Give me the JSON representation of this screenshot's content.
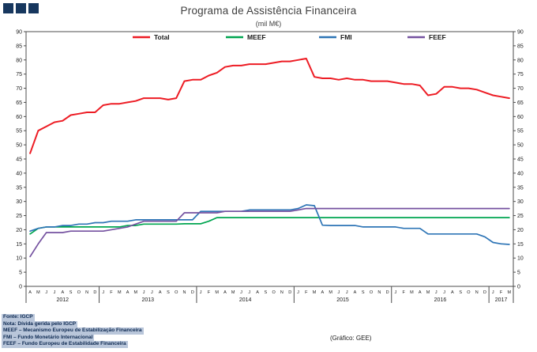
{
  "page": {
    "title": "Programa de Assistência Financeira",
    "subtitle": "(mil M€)"
  },
  "logo": {
    "squares": 3,
    "color": "#17375e"
  },
  "footnotes": [
    "Fonte: IGCP",
    "Nota: Dívida gerida pelo IGCP",
    "MEEF – Mecanismo Europeu de Estabilização Financeira",
    "FMI – Fundo Monetário Internacional",
    "FEEF – Fundo Europeu de Estabilidade Financeira"
  ],
  "credit": "(Gráfico: GEE)",
  "chart_data": {
    "type": "line",
    "title": "Programa de Assistência Financeira",
    "subtitle": "(mil M€)",
    "ylabel": "",
    "xlabel": "",
    "ylim": [
      0,
      90
    ],
    "ytick_step": 5,
    "grid": false,
    "legend_position": "top-center-inside",
    "dual_y_axis": true,
    "colors": {
      "axis": "#4d4d4d",
      "text": "#1a1a1a"
    },
    "x_months": [
      "A",
      "M",
      "J",
      "J",
      "A",
      "S",
      "O",
      "N",
      "D",
      "J",
      "F",
      "M",
      "A",
      "M",
      "J",
      "J",
      "A",
      "S",
      "O",
      "N",
      "D",
      "J",
      "F",
      "M",
      "A",
      "M",
      "J",
      "J",
      "A",
      "S",
      "O",
      "N",
      "D",
      "J",
      "F",
      "M",
      "A",
      "M",
      "J",
      "J",
      "A",
      "S",
      "O",
      "N",
      "D",
      "J",
      "F",
      "M",
      "A",
      "M",
      "J",
      "J",
      "A",
      "S",
      "O",
      "N",
      "D",
      "J",
      "F",
      "M"
    ],
    "year_groups": [
      {
        "label": "2012",
        "count": 9
      },
      {
        "label": "2013",
        "count": 12
      },
      {
        "label": "2014",
        "count": 12
      },
      {
        "label": "2015",
        "count": 12
      },
      {
        "label": "2016",
        "count": 12
      },
      {
        "label": "2017",
        "count": 3
      }
    ],
    "series": [
      {
        "name": "Total",
        "color": "#ed1c24",
        "values": [
          47,
          55,
          56.5,
          58,
          58.5,
          60.5,
          61,
          61.5,
          61.5,
          64,
          64.5,
          64.5,
          65,
          65.5,
          66.5,
          66.5,
          66.5,
          66,
          66.5,
          72.5,
          73,
          73,
          74.5,
          75.5,
          77.5,
          78,
          78,
          78.5,
          78.5,
          78.5,
          79,
          79.5,
          79.5,
          80,
          80.5,
          74,
          73.5,
          73.5,
          73,
          73.5,
          73,
          73,
          72.5,
          72.5,
          72.5,
          72,
          71.5,
          71.5,
          71,
          67.5,
          68,
          70.5,
          70.5,
          70,
          70,
          69.5,
          68.5,
          67.5,
          67,
          66.5
        ]
      },
      {
        "name": "MEEF",
        "color": "#00a550",
        "values": [
          18.5,
          20.5,
          21,
          21,
          21,
          21,
          21,
          21,
          21,
          21,
          21,
          21,
          21.5,
          21.5,
          22,
          22,
          22,
          22,
          22,
          22.1,
          22.1,
          22.1,
          23,
          24.3,
          24.3,
          24.3,
          24.3,
          24.3,
          24.3,
          24.3,
          24.3,
          24.3,
          24.3,
          24.3,
          24.3,
          24.3,
          24.3,
          24.3,
          24.3,
          24.3,
          24.3,
          24.3,
          24.3,
          24.3,
          24.3,
          24.3,
          24.3,
          24.3,
          24.3,
          24.3,
          24.3,
          24.3,
          24.3,
          24.3,
          24.3,
          24.3,
          24.3,
          24.3,
          24.3,
          24.3
        ]
      },
      {
        "name": "FMI",
        "color": "#2e75b6",
        "values": [
          19.5,
          20.5,
          21,
          21,
          21.5,
          21.5,
          22,
          22,
          22.5,
          22.5,
          23,
          23,
          23,
          23.5,
          23.5,
          23.5,
          23.5,
          23.5,
          23.5,
          23.5,
          23.5,
          26.5,
          26.5,
          26.5,
          26.5,
          26.5,
          26.5,
          27,
          27,
          27,
          27,
          27,
          27,
          27.5,
          28.8,
          28.5,
          21.6,
          21.5,
          21.5,
          21.5,
          21.5,
          21,
          21,
          21,
          21,
          21,
          20.5,
          20.5,
          20.5,
          18.5,
          18.5,
          18.5,
          18.5,
          18.5,
          18.5,
          18.5,
          17.5,
          15.5,
          15,
          14.8
        ]
      },
      {
        "name": "FEEF",
        "color": "#7552a0",
        "values": [
          10.5,
          15,
          19,
          19,
          19,
          19.5,
          19.5,
          19.5,
          19.5,
          19.5,
          20,
          20.5,
          21,
          22,
          23,
          23,
          23,
          23,
          23,
          26,
          26,
          26,
          26,
          26,
          26.5,
          26.5,
          26.5,
          26.5,
          26.5,
          26.5,
          26.5,
          26.5,
          26.5,
          27,
          27.5,
          27.5,
          27.5,
          27.5,
          27.5,
          27.5,
          27.5,
          27.5,
          27.5,
          27.5,
          27.5,
          27.5,
          27.5,
          27.5,
          27.5,
          27.5,
          27.5,
          27.5,
          27.5,
          27.5,
          27.5,
          27.5,
          27.5,
          27.5,
          27.5,
          27.5
        ]
      }
    ]
  }
}
